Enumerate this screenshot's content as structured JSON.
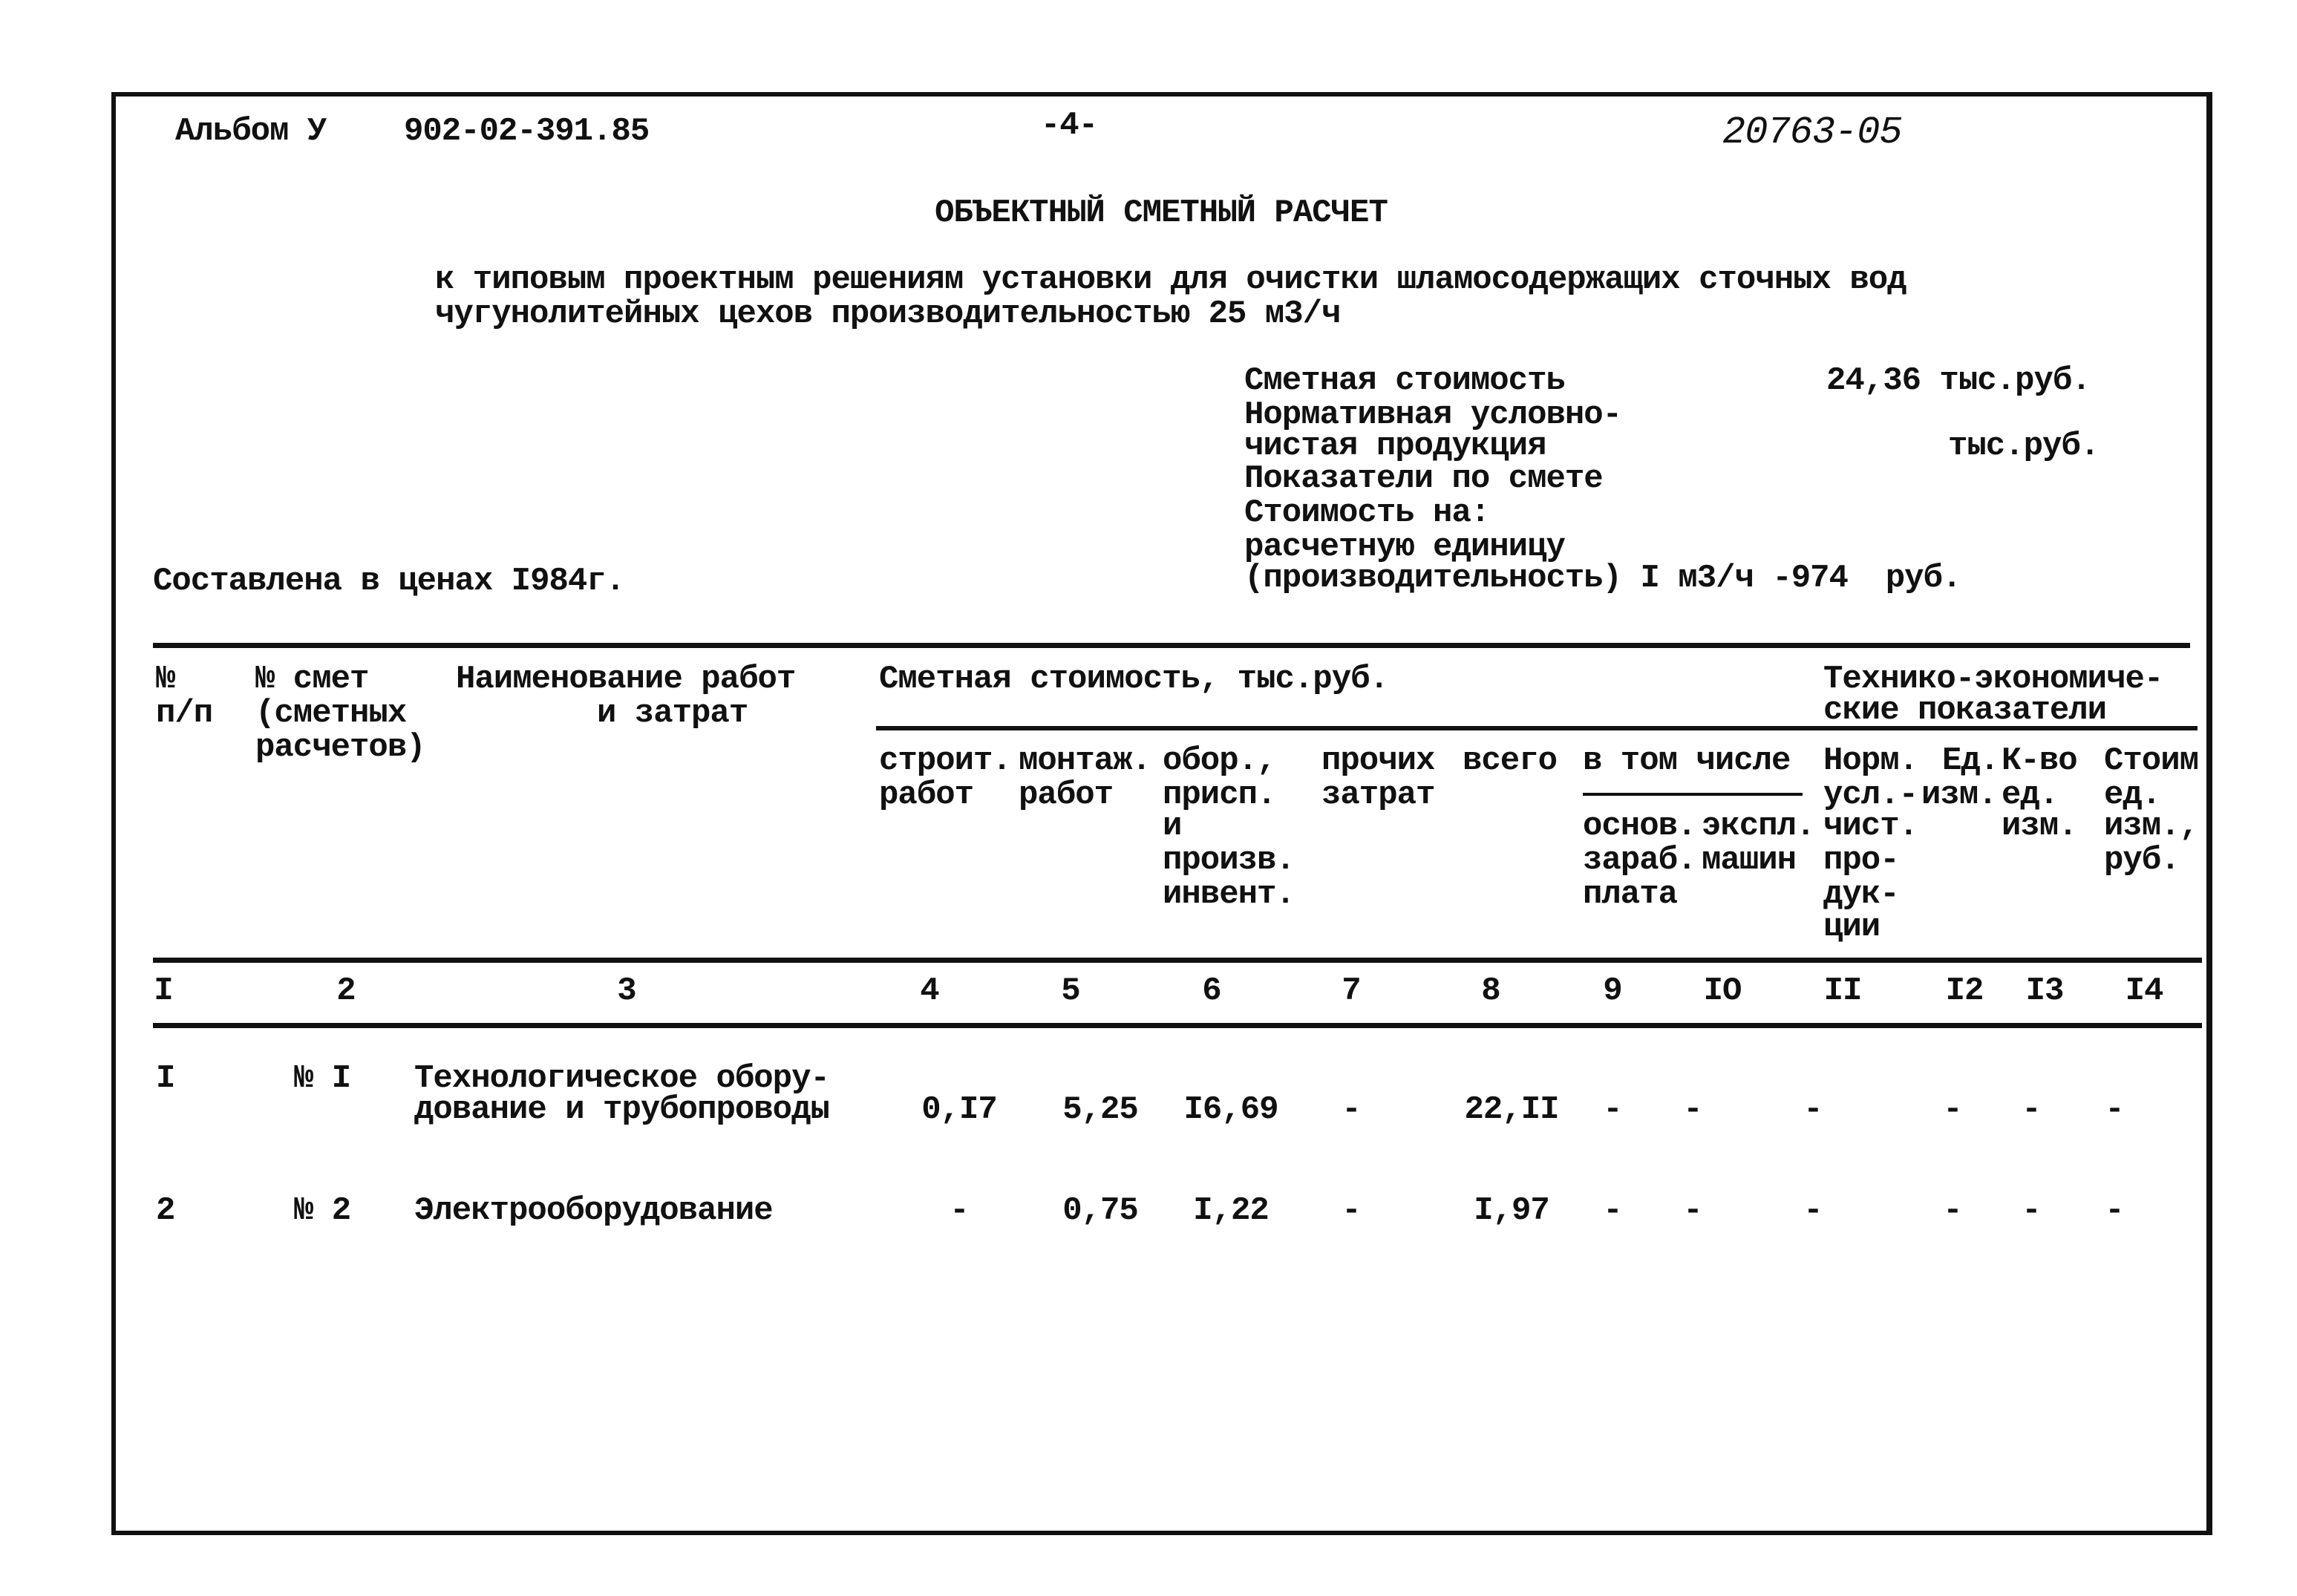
{
  "header": {
    "album": "Альбом У",
    "code": "902-02-391.85",
    "page": "-4-",
    "number": "20763-05"
  },
  "title": "ОБЪЕКТНЫЙ СМЕТНЫЙ РАСЧЕТ",
  "subtitle": [
    "к типовым проектным решениям установки для очистки шламосодержащих сточных вод",
    "чугунолитейных цехов производительностью 25 м3/ч"
  ],
  "summary": {
    "lines": [
      "Сметная стоимость",
      "Нормативная условно-",
      "чистая продукция",
      "Показатели по смете",
      "Стоимость на:",
      "расчетную единицу",
      "(производительность) I м3/ч -974  руб."
    ],
    "cost_value": "24,36 тыс.руб.",
    "norm_value": "тыс.руб.",
    "prices": "Составлена в ценах I984г."
  },
  "table": {
    "h_num": [
      "№",
      "п/п"
    ],
    "h_est": [
      "№ смет",
      "(сметных",
      "расчетов)"
    ],
    "h_name": [
      "Наименование работ",
      "и затрат"
    ],
    "h_cost": "Сметная стоимость, тыс.руб.",
    "h_tech": [
      "Технико-экономиче-",
      "ские показатели"
    ],
    "h_c4": [
      "строит.",
      "работ"
    ],
    "h_c5": [
      "монтаж.",
      "работ"
    ],
    "h_c6": [
      "обор.,",
      "присп.",
      "и",
      "произв.",
      "инвент."
    ],
    "h_c7": [
      "прочих",
      "затрат"
    ],
    "h_c8": "всего",
    "h_incl": "в том числе",
    "h_c9": [
      "основ.",
      "зараб.",
      "плата"
    ],
    "h_c10": [
      "экспл.",
      "машин"
    ],
    "h_c11": [
      "Норм.",
      "усл.-",
      "чист.",
      "про-",
      "дук-",
      "ции"
    ],
    "h_c12": [
      "Ед.",
      "изм."
    ],
    "h_c13": [
      "К-во",
      "ед.",
      "изм."
    ],
    "h_c14": [
      "Стоим",
      "ед.",
      "изм.,",
      "руб."
    ],
    "col_numbers": [
      "I",
      "2",
      "3",
      "4",
      "5",
      "6",
      "7",
      "8",
      "9",
      "IO",
      "II",
      "I2",
      "I3",
      "I4"
    ],
    "rows": [
      {
        "num": "I",
        "est": "№ I",
        "name": [
          "Технологическое обору-",
          "дование и трубопроводы"
        ],
        "values": [
          "0,I7",
          "5,25",
          "I6,69",
          "-",
          "22,II",
          "-",
          "-",
          "-",
          "-",
          "-",
          "-"
        ]
      },
      {
        "num": "2",
        "est": "№ 2",
        "name": [
          "Электрооборудование"
        ],
        "values": [
          "-",
          "0,75",
          "I,22",
          "-",
          "I,97",
          "-",
          "-",
          "-",
          "-",
          "-",
          "-"
        ]
      }
    ]
  }
}
